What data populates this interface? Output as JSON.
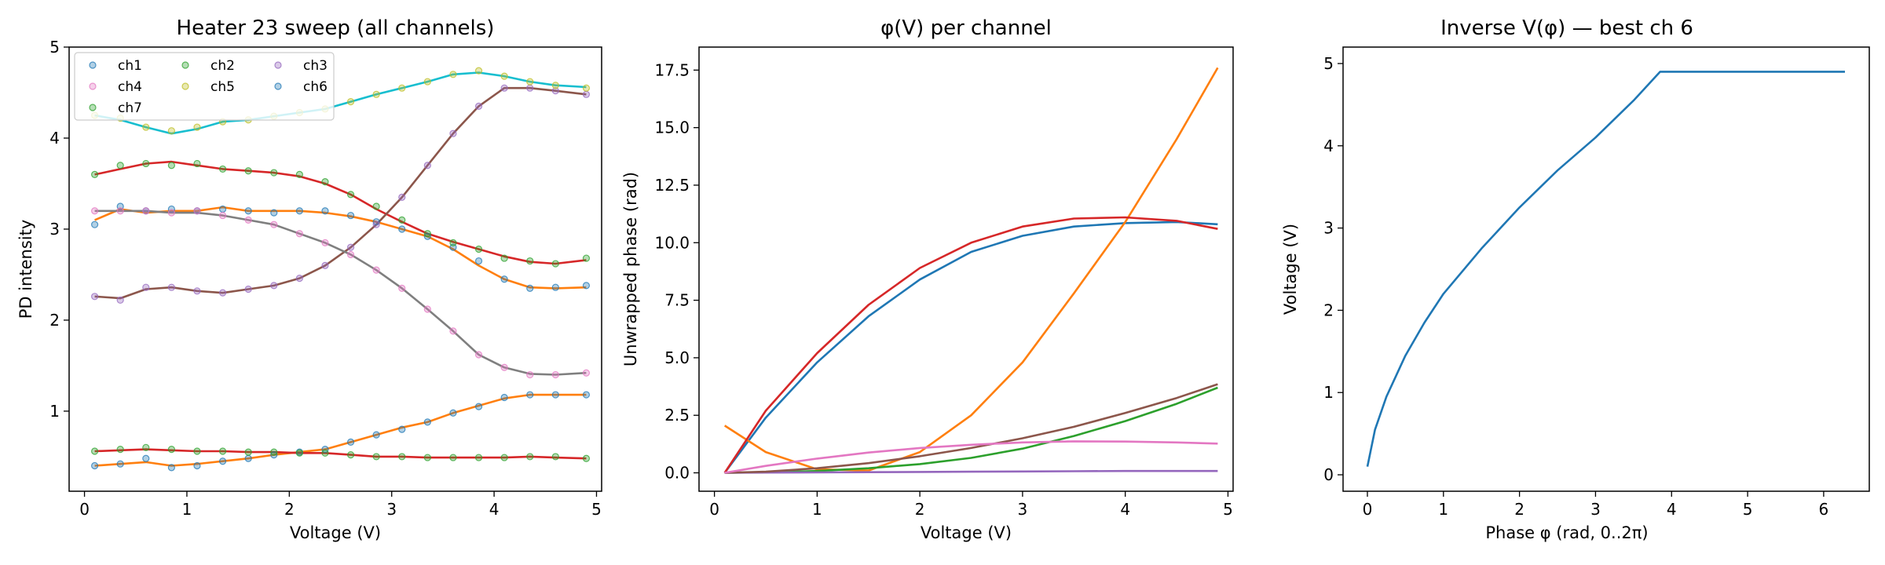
{
  "chart_data": [
    {
      "type": "scatter",
      "title": "Heater 23 sweep (all channels)",
      "xlabel": "Voltage (V)",
      "ylabel": "PD intensity",
      "xlim": [
        -0.15,
        5.05
      ],
      "ylim": [
        0.12,
        5.0
      ],
      "xticks": [
        0,
        1,
        2,
        3,
        4,
        5
      ],
      "yticks": [
        1,
        2,
        3,
        4,
        5
      ],
      "grid": false,
      "legend": {
        "placement": "top-left",
        "columns": 3
      },
      "x": [
        0.1,
        0.35,
        0.6,
        0.85,
        1.1,
        1.35,
        1.6,
        1.85,
        2.1,
        2.35,
        2.6,
        2.85,
        3.1,
        3.35,
        3.6,
        3.85,
        4.1,
        4.35,
        4.6,
        4.9
      ],
      "series": [
        {
          "name": "ch1",
          "color": "#1f77b4",
          "values": [
            3.05,
            3.25,
            3.2,
            3.22,
            3.2,
            3.22,
            3.2,
            3.18,
            3.2,
            3.2,
            3.15,
            3.08,
            3.0,
            2.92,
            2.8,
            2.65,
            2.45,
            2.35,
            2.36,
            2.38
          ]
        },
        {
          "name": "ch2",
          "color": "#2ca02c",
          "values": [
            3.6,
            3.7,
            3.72,
            3.7,
            3.72,
            3.66,
            3.64,
            3.62,
            3.6,
            3.52,
            3.38,
            3.25,
            3.1,
            2.95,
            2.85,
            2.78,
            2.68,
            2.65,
            2.62,
            2.68
          ]
        },
        {
          "name": "ch3",
          "color": "#9467bd",
          "values": [
            2.26,
            2.22,
            2.36,
            2.36,
            2.32,
            2.3,
            2.34,
            2.38,
            2.46,
            2.6,
            2.8,
            3.05,
            3.35,
            3.7,
            4.05,
            4.35,
            4.55,
            4.55,
            4.52,
            4.48
          ]
        },
        {
          "name": "ch4",
          "color": "#e377c2",
          "values": [
            3.2,
            3.2,
            3.2,
            3.18,
            3.2,
            3.15,
            3.1,
            3.05,
            2.95,
            2.85,
            2.72,
            2.55,
            2.35,
            2.12,
            1.88,
            1.62,
            1.48,
            1.4,
            1.4,
            1.42
          ]
        },
        {
          "name": "ch5",
          "color": "#bcbd22",
          "values": [
            4.25,
            4.22,
            4.12,
            4.08,
            4.12,
            4.18,
            4.2,
            4.24,
            4.28,
            4.32,
            4.4,
            4.48,
            4.55,
            4.62,
            4.7,
            4.74,
            4.68,
            4.62,
            4.58,
            4.55
          ]
        },
        {
          "name": "ch6",
          "color": "#1f77b4",
          "values": [
            0.4,
            0.42,
            0.48,
            0.38,
            0.4,
            0.45,
            0.48,
            0.52,
            0.55,
            0.58,
            0.66,
            0.74,
            0.8,
            0.88,
            0.98,
            1.05,
            1.15,
            1.18,
            1.18,
            1.18
          ]
        },
        {
          "name": "ch7",
          "color": "#2ca02c",
          "values": [
            0.56,
            0.58,
            0.6,
            0.58,
            0.56,
            0.56,
            0.55,
            0.55,
            0.54,
            0.54,
            0.52,
            0.5,
            0.5,
            0.49,
            0.49,
            0.49,
            0.49,
            0.5,
            0.5,
            0.48
          ]
        }
      ],
      "fits": [
        {
          "color": "#ff7f0e",
          "values": [
            3.1,
            3.22,
            3.18,
            3.2,
            3.2,
            3.24,
            3.2,
            3.2,
            3.2,
            3.18,
            3.14,
            3.08,
            3.0,
            2.92,
            2.78,
            2.6,
            2.45,
            2.36,
            2.35,
            2.36
          ]
        },
        {
          "color": "#d62728",
          "values": [
            3.6,
            3.66,
            3.72,
            3.74,
            3.7,
            3.66,
            3.64,
            3.62,
            3.58,
            3.5,
            3.38,
            3.22,
            3.08,
            2.95,
            2.86,
            2.78,
            2.7,
            2.64,
            2.62,
            2.66
          ]
        },
        {
          "color": "#8c564b",
          "values": [
            2.26,
            2.24,
            2.34,
            2.36,
            2.32,
            2.3,
            2.34,
            2.38,
            2.46,
            2.6,
            2.8,
            3.05,
            3.35,
            3.7,
            4.05,
            4.35,
            4.55,
            4.55,
            4.52,
            4.48
          ]
        },
        {
          "color": "#7f7f7f",
          "values": [
            3.2,
            3.2,
            3.2,
            3.18,
            3.18,
            3.15,
            3.1,
            3.05,
            2.95,
            2.85,
            2.72,
            2.55,
            2.35,
            2.12,
            1.88,
            1.62,
            1.48,
            1.41,
            1.4,
            1.42
          ]
        },
        {
          "color": "#17becf",
          "values": [
            4.25,
            4.2,
            4.12,
            4.05,
            4.1,
            4.18,
            4.2,
            4.24,
            4.28,
            4.32,
            4.4,
            4.48,
            4.55,
            4.62,
            4.7,
            4.72,
            4.68,
            4.62,
            4.58,
            4.56
          ]
        },
        {
          "color": "#ff7f0e",
          "values": [
            0.4,
            0.42,
            0.44,
            0.4,
            0.42,
            0.45,
            0.48,
            0.52,
            0.55,
            0.58,
            0.66,
            0.74,
            0.82,
            0.88,
            0.98,
            1.06,
            1.14,
            1.18,
            1.18,
            1.18
          ]
        },
        {
          "color": "#d62728",
          "values": [
            0.56,
            0.57,
            0.58,
            0.57,
            0.56,
            0.56,
            0.55,
            0.55,
            0.54,
            0.54,
            0.52,
            0.5,
            0.5,
            0.49,
            0.49,
            0.49,
            0.49,
            0.5,
            0.49,
            0.48
          ]
        }
      ]
    },
    {
      "type": "line",
      "title": "φ(V) per channel",
      "xlabel": "Voltage (V)",
      "ylabel": "Unwrapped phase (rad)",
      "xlim": [
        -0.15,
        5.05
      ],
      "ylim": [
        -0.8,
        18.5
      ],
      "xticks": [
        0,
        1,
        2,
        3,
        4,
        5
      ],
      "yticks": [
        "0.0",
        "2.5",
        "5.0",
        "7.5",
        "10.0",
        "12.5",
        "15.0",
        "17.5"
      ],
      "grid": false,
      "x": [
        0.1,
        0.5,
        1.0,
        1.5,
        2.0,
        2.5,
        3.0,
        3.5,
        4.0,
        4.5,
        4.9
      ],
      "series": [
        {
          "color": "#1f77b4",
          "values": [
            0.0,
            2.4,
            4.8,
            6.8,
            8.4,
            9.6,
            10.3,
            10.7,
            10.85,
            10.9,
            10.8
          ]
        },
        {
          "color": "#ff7f0e",
          "values": [
            2.05,
            0.9,
            0.15,
            0.1,
            0.9,
            2.5,
            4.8,
            7.8,
            10.9,
            14.5,
            17.6
          ]
        },
        {
          "color": "#2ca02c",
          "values": [
            0.0,
            0.02,
            0.08,
            0.2,
            0.38,
            0.65,
            1.05,
            1.6,
            2.25,
            3.0,
            3.7
          ]
        },
        {
          "color": "#d62728",
          "values": [
            0.0,
            2.7,
            5.2,
            7.3,
            8.9,
            10.0,
            10.7,
            11.05,
            11.1,
            10.95,
            10.6
          ]
        },
        {
          "color": "#9467bd",
          "values": [
            0.0,
            0.01,
            0.02,
            0.03,
            0.04,
            0.05,
            0.06,
            0.07,
            0.08,
            0.08,
            0.08
          ]
        },
        {
          "color": "#8c564b",
          "values": [
            0.0,
            0.05,
            0.2,
            0.42,
            0.72,
            1.08,
            1.5,
            2.0,
            2.6,
            3.25,
            3.85
          ]
        },
        {
          "color": "#e377c2",
          "values": [
            0.0,
            0.3,
            0.62,
            0.88,
            1.08,
            1.22,
            1.32,
            1.37,
            1.36,
            1.32,
            1.27
          ]
        }
      ]
    },
    {
      "type": "line",
      "title": "Inverse V(φ) — best ch 6",
      "xlabel": "Phase φ (rad, 0..2π)",
      "ylabel": "Voltage (V)",
      "xlim": [
        -0.32,
        6.6
      ],
      "ylim": [
        -0.2,
        5.2
      ],
      "xticks": [
        0,
        1,
        2,
        3,
        4,
        5,
        6
      ],
      "yticks": [
        0,
        1,
        2,
        3,
        4,
        5
      ],
      "grid": false,
      "x": [
        0.0,
        0.1,
        0.25,
        0.5,
        0.75,
        1.0,
        1.5,
        2.0,
        2.5,
        3.0,
        3.5,
        3.85,
        4.5,
        5.0,
        5.5,
        6.28
      ],
      "series": [
        {
          "color": "#1f77b4",
          "values": [
            0.1,
            0.55,
            0.95,
            1.45,
            1.85,
            2.2,
            2.75,
            3.25,
            3.7,
            4.1,
            4.55,
            4.9,
            4.9,
            4.9,
            4.9,
            4.9
          ]
        }
      ]
    }
  ]
}
